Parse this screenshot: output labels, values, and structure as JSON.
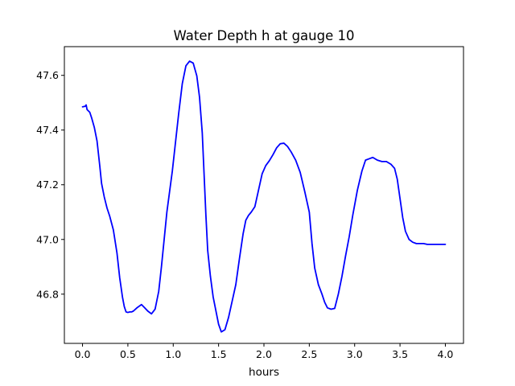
{
  "chart_data": {
    "type": "line",
    "title": "Water Depth h at gauge 10",
    "xlabel": "hours",
    "ylabel": "",
    "xlim": [
      -0.2,
      4.2
    ],
    "ylim": [
      46.62,
      47.705
    ],
    "xticks": [
      0.0,
      0.5,
      1.0,
      1.5,
      2.0,
      2.5,
      3.0,
      3.5,
      4.0
    ],
    "xtick_labels": [
      "0.0",
      "0.5",
      "1.0",
      "1.5",
      "2.0",
      "2.5",
      "3.0",
      "3.5",
      "4.0"
    ],
    "yticks": [
      46.8,
      47.0,
      47.2,
      47.4,
      47.6
    ],
    "ytick_labels": [
      "46.8",
      "47.0",
      "47.2",
      "47.4",
      "47.6"
    ],
    "grid": false,
    "legend": "none",
    "series": [
      {
        "color": "#0000ff",
        "x": [
          0.0,
          0.03,
          0.04,
          0.05,
          0.08,
          0.1,
          0.13,
          0.16,
          0.19,
          0.21,
          0.24,
          0.27,
          0.3,
          0.34,
          0.38,
          0.41,
          0.44,
          0.46,
          0.48,
          0.5,
          0.52,
          0.54,
          0.56,
          0.6,
          0.65,
          0.68,
          0.72,
          0.76,
          0.8,
          0.84,
          0.87,
          0.9,
          0.93,
          0.96,
          0.99,
          1.02,
          1.06,
          1.1,
          1.14,
          1.18,
          1.22,
          1.26,
          1.29,
          1.32,
          1.34,
          1.36,
          1.38,
          1.41,
          1.44,
          1.47,
          1.5,
          1.53,
          1.57,
          1.61,
          1.65,
          1.69,
          1.73,
          1.77,
          1.8,
          1.83,
          1.86,
          1.9,
          1.94,
          1.98,
          2.02,
          2.06,
          2.1,
          2.14,
          2.18,
          2.22,
          2.26,
          2.3,
          2.35,
          2.4,
          2.45,
          2.5,
          2.53,
          2.56,
          2.6,
          2.64,
          2.67,
          2.7,
          2.74,
          2.78,
          2.82,
          2.86,
          2.9,
          2.94,
          2.98,
          3.03,
          3.08,
          3.12,
          3.16,
          3.2,
          3.25,
          3.3,
          3.35,
          3.4,
          3.44,
          3.47,
          3.5,
          3.53,
          3.56,
          3.6,
          3.64,
          3.68,
          3.72,
          3.76,
          3.8,
          3.84,
          3.88,
          3.92,
          3.96,
          4.0
        ],
        "y": [
          47.485,
          47.487,
          47.492,
          47.475,
          47.465,
          47.445,
          47.41,
          47.36,
          47.27,
          47.205,
          47.155,
          47.115,
          47.085,
          47.035,
          46.95,
          46.86,
          46.79,
          46.755,
          46.735,
          46.733,
          46.735,
          46.735,
          46.738,
          46.75,
          46.762,
          46.752,
          46.738,
          46.728,
          46.745,
          46.81,
          46.9,
          47.0,
          47.1,
          47.175,
          47.25,
          47.34,
          47.46,
          47.57,
          47.635,
          47.652,
          47.645,
          47.598,
          47.52,
          47.39,
          47.24,
          47.09,
          46.96,
          46.865,
          46.79,
          46.74,
          46.69,
          46.662,
          46.67,
          46.715,
          46.775,
          46.835,
          46.93,
          47.02,
          47.07,
          47.088,
          47.1,
          47.12,
          47.18,
          47.24,
          47.27,
          47.288,
          47.31,
          47.335,
          47.35,
          47.352,
          47.34,
          47.32,
          47.29,
          47.245,
          47.175,
          47.1,
          46.985,
          46.895,
          46.835,
          46.8,
          46.77,
          46.75,
          46.745,
          46.748,
          46.8,
          46.865,
          46.94,
          47.01,
          47.09,
          47.18,
          47.25,
          47.29,
          47.295,
          47.3,
          47.29,
          47.285,
          47.285,
          47.275,
          47.26,
          47.22,
          47.15,
          47.08,
          47.03,
          47.0,
          46.99,
          46.985,
          46.985,
          46.985,
          46.982,
          46.982,
          46.982,
          46.982,
          46.982,
          46.982
        ]
      }
    ]
  }
}
